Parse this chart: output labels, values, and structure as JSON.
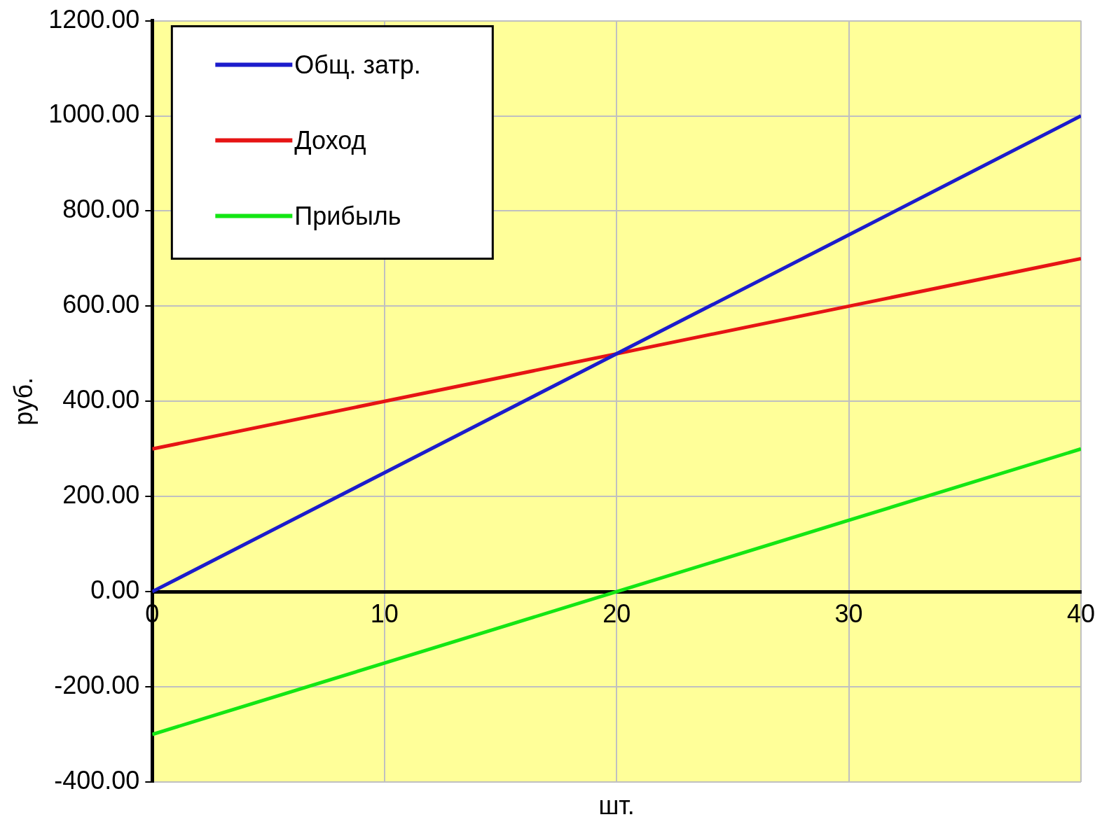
{
  "chart_data": {
    "type": "line",
    "xlabel": "шт.",
    "ylabel": "руб.",
    "x": [
      0,
      10,
      20,
      30,
      40
    ],
    "series": [
      {
        "name": "Общ. затр.",
        "color": "#1c1ccc",
        "values": [
          0,
          250,
          500,
          750,
          1000
        ]
      },
      {
        "name": "Доход",
        "color": "#e61414",
        "values": [
          300,
          400,
          500,
          600,
          700
        ]
      },
      {
        "name": "Прибыль",
        "color": "#14e614",
        "values": [
          -300,
          -150,
          0,
          150,
          300
        ]
      }
    ],
    "xlim": [
      0,
      40
    ],
    "xticks": [
      0,
      10,
      20,
      30,
      40
    ],
    "ylim": [
      -400,
      1200
    ],
    "yticks": [
      {
        "value": -400,
        "label": "-400.00"
      },
      {
        "value": -200,
        "label": "-200.00"
      },
      {
        "value": 0,
        "label": "0.00"
      },
      {
        "value": 200,
        "label": "200.00"
      },
      {
        "value": 400,
        "label": "400.00"
      },
      {
        "value": 600,
        "label": "600.00"
      },
      {
        "value": 800,
        "label": "800.00"
      },
      {
        "value": 1000,
        "label": "1000.00"
      },
      {
        "value": 1200,
        "label": "1200.00"
      }
    ],
    "grid": true,
    "legend": "top left",
    "marker": "none",
    "line_style": "solid"
  }
}
